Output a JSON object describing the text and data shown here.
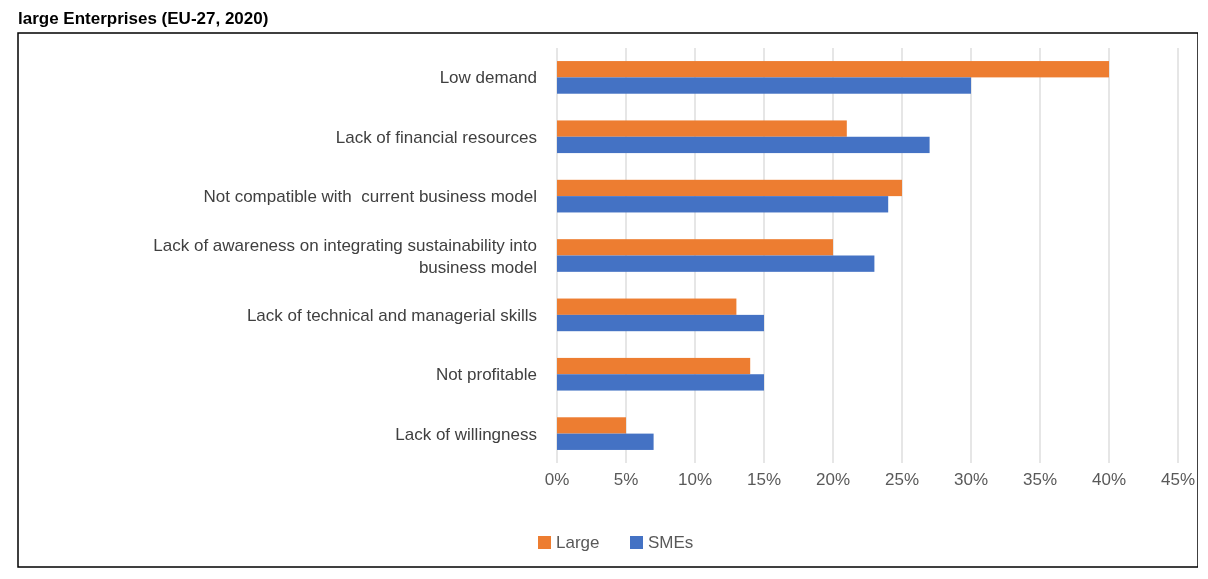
{
  "chart_data": {
    "type": "bar",
    "orientation": "horizontal",
    "title": "large Enterprises (EU-27, 2020)",
    "categories": [
      "Low demand",
      "Lack of financial resources",
      "Not compatible with  current business model",
      "Lack of awareness on integrating sustainability into business model",
      "Lack of technical and managerial skills",
      "Not profitable",
      "Lack of willingness"
    ],
    "series": [
      {
        "name": "Large",
        "color": "#ed7d31",
        "values": [
          40,
          21,
          25,
          20,
          13,
          14,
          5
        ]
      },
      {
        "name": "SMEs",
        "color": "#4472c4",
        "values": [
          30,
          27,
          24,
          23,
          15,
          15,
          7
        ]
      }
    ],
    "xlim": [
      0,
      45
    ],
    "xticks": [
      {
        "value": 0,
        "label": "0%"
      },
      {
        "value": 5,
        "label": "5%"
      },
      {
        "value": 10,
        "label": "10%"
      },
      {
        "value": 15,
        "label": "15%"
      },
      {
        "value": 20,
        "label": "20%"
      },
      {
        "value": 25,
        "label": "25%"
      },
      {
        "value": 30,
        "label": "30%"
      },
      {
        "value": 35,
        "label": "35%"
      },
      {
        "value": 40,
        "label": "40%"
      },
      {
        "value": 45,
        "label": "45%"
      }
    ],
    "grid": "x",
    "legend": "bottom"
  }
}
